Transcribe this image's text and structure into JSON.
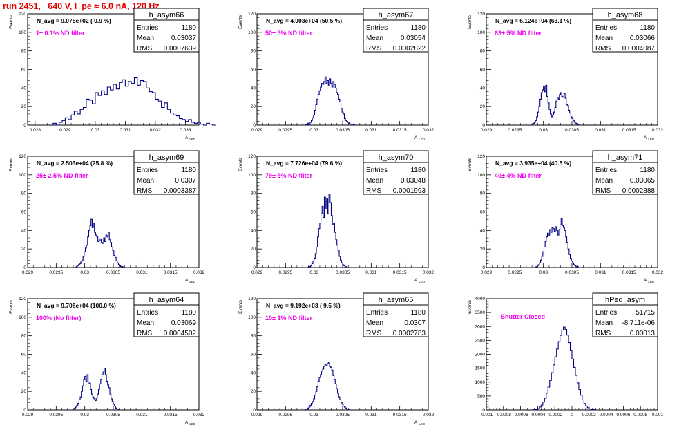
{
  "header": "run 2451,   640 V, I_pe ≈ 6.0 nA, 120 Hz",
  "colors": {
    "header": "#e00000",
    "annotation": "#ee00ee",
    "histogram": "#000080"
  },
  "chart_data": [
    {
      "type": "bar",
      "name": "h_asym66",
      "navg": "N_avg = 9.075e+02 ( 0.9 %)",
      "label": "1± 0.1% ND filter",
      "stats": {
        "entries": "1180",
        "mean": "0.03037",
        "rms": "0.0007639"
      },
      "ylabel": "Events",
      "xlabel": "A",
      "xlabel_sub": "LED",
      "xlim": [
        0.02775,
        0.03345
      ],
      "ylim": [
        0,
        120
      ],
      "yticks": [
        0,
        20,
        40,
        60,
        80,
        100,
        120
      ],
      "xticks": [
        "0.028",
        "0.029",
        "0.03",
        "0.031",
        "0.032",
        "0.033"
      ],
      "xtick_values": [
        0.028,
        0.029,
        0.03,
        0.031,
        0.032,
        0.033
      ],
      "bins": {
        "x0": 0.0286,
        "dx": 0.0001,
        "values": [
          2,
          0,
          3,
          5,
          8,
          6,
          11,
          15,
          12,
          17,
          19,
          28,
          27,
          23,
          35,
          32,
          37,
          33,
          41,
          38,
          44,
          39,
          46,
          49,
          42,
          47,
          45,
          51,
          43,
          48,
          47,
          40,
          36,
          35,
          28,
          26,
          19,
          24,
          17,
          13,
          11,
          10,
          7,
          6,
          4,
          6,
          3,
          2,
          3,
          1,
          0,
          2,
          1,
          0
        ]
      }
    },
    {
      "type": "bar",
      "name": "h_asym67",
      "navg": "N_avg = 4.903e+04 (50.5 %)",
      "label": "50± 5% ND filter",
      "stats": {
        "entries": "1180",
        "mean": "0.03054",
        "rms": "0.0002822"
      },
      "ylabel": "Events",
      "xlabel": "A",
      "xlabel_sub": "LED",
      "xlim": [
        0.029,
        0.032
      ],
      "ylim": [
        0,
        120
      ],
      "yticks": [
        0,
        20,
        40,
        60,
        80,
        100,
        120
      ],
      "xticks": [
        "0.029",
        "0.0295",
        "0.03",
        "0.0305",
        "0.031",
        "0.0315",
        "0.032"
      ],
      "xtick_values": [
        0.029,
        0.0295,
        0.03,
        0.0305,
        0.031,
        0.0315,
        0.032
      ],
      "bins": {
        "x0": 0.02985,
        "dx": 2e-05,
        "values": [
          1,
          0,
          2,
          0,
          3,
          5,
          8,
          11,
          16,
          22,
          28,
          33,
          37,
          41,
          45,
          44,
          47,
          52,
          45,
          48,
          43,
          50,
          45,
          41,
          47,
          44,
          40,
          35,
          33,
          28,
          25,
          18,
          14,
          12,
          7,
          5,
          4,
          3,
          2,
          1,
          1,
          0,
          1
        ]
      }
    },
    {
      "type": "bar",
      "name": "h_asym68",
      "navg": "N_avg = 6.124e+04 (63.1 %)",
      "label": "63± 5% ND filter",
      "stats": {
        "entries": "1180",
        "mean": "0.03066",
        "rms": "0.0004087"
      },
      "ylabel": "Events",
      "xlabel": "A",
      "xlabel_sub": "LED",
      "xlim": [
        0.029,
        0.032
      ],
      "ylim": [
        0,
        120
      ],
      "yticks": [
        0,
        20,
        40,
        60,
        80,
        100,
        120
      ],
      "xticks": [
        "0.029",
        "0.0295",
        "0.03",
        "0.0305",
        "0.031",
        "0.0315",
        "0.032"
      ],
      "xtick_values": [
        0.029,
        0.0295,
        0.03,
        0.0305,
        0.031,
        0.0315,
        0.032
      ],
      "bins": {
        "x0": 0.0298,
        "dx": 2e-05,
        "values": [
          1,
          2,
          3,
          5,
          9,
          14,
          20,
          28,
          35,
          38,
          42,
          36,
          43,
          31,
          24,
          17,
          12,
          9,
          11,
          14,
          19,
          26,
          30,
          28,
          33,
          35,
          31,
          30,
          34,
          29,
          22,
          21,
          16,
          13,
          9,
          7,
          5,
          3,
          2,
          1,
          1,
          0
        ]
      }
    },
    {
      "type": "bar",
      "name": "h_asym69",
      "navg": "N_avg = 2.503e+04 (25.8 %)",
      "label": "25± 2.5% ND filter",
      "stats": {
        "entries": "1180",
        "mean": "0.0307",
        "rms": "0.0003387"
      },
      "ylabel": "Events",
      "xlabel": "A",
      "xlabel_sub": "LED",
      "xlim": [
        0.029,
        0.032
      ],
      "ylim": [
        0,
        120
      ],
      "yticks": [
        0,
        20,
        40,
        60,
        80,
        100,
        120
      ],
      "xticks": [
        "0.029",
        "0.0295",
        "0.03",
        "0.0305",
        "0.031",
        "0.0315",
        "0.032"
      ],
      "xtick_values": [
        0.029,
        0.0295,
        0.03,
        0.0305,
        0.031,
        0.0315,
        0.032
      ],
      "bins": {
        "x0": 0.02985,
        "dx": 2e-05,
        "values": [
          1,
          2,
          3,
          4,
          6,
          8,
          12,
          17,
          21,
          24,
          33,
          40,
          45,
          52,
          43,
          48,
          38,
          35,
          33,
          28,
          29,
          31,
          27,
          26,
          32,
          28,
          35,
          33,
          38,
          30,
          27,
          22,
          18,
          13,
          11,
          7,
          5,
          3,
          2,
          1,
          1
        ]
      }
    },
    {
      "type": "bar",
      "name": "h_asym70",
      "navg": "N_avg = 7.726e+04 (79.6 %)",
      "label": "79± 5% ND filter",
      "stats": {
        "entries": "1180",
        "mean": "0.03048",
        "rms": "0.0001993"
      },
      "ylabel": "Events",
      "xlabel": "A",
      "xlabel_sub": "LED",
      "xlim": [
        0.029,
        0.032
      ],
      "ylim": [
        0,
        120
      ],
      "yticks": [
        0,
        20,
        40,
        60,
        80,
        100,
        120
      ],
      "xticks": [
        "0.029",
        "0.0295",
        "0.03",
        "0.0305",
        "0.031",
        "0.0315",
        "0.032"
      ],
      "xtick_values": [
        0.029,
        0.0295,
        0.03,
        0.0305,
        0.031,
        0.0315,
        0.032
      ],
      "bins": {
        "x0": 0.0299,
        "dx": 2e-05,
        "values": [
          1,
          1,
          2,
          4,
          7,
          10,
          15,
          22,
          33,
          42,
          48,
          58,
          66,
          54,
          76,
          63,
          74,
          58,
          79,
          70,
          56,
          46,
          48,
          38,
          30,
          24,
          18,
          12,
          8,
          5,
          3,
          2,
          1,
          1,
          0
        ]
      }
    },
    {
      "type": "bar",
      "name": "h_asym71",
      "navg": "N_avg = 3.935e+04 (40.5 %)",
      "label": "40± 4% ND filter",
      "stats": {
        "entries": "1180",
        "mean": "0.03065",
        "rms": "0.0002888"
      },
      "ylabel": "Events",
      "xlabel": "A",
      "xlabel_sub": "LED",
      "xlim": [
        0.029,
        0.032
      ],
      "ylim": [
        0,
        120
      ],
      "yticks": [
        0,
        20,
        40,
        60,
        80,
        100,
        120
      ],
      "xticks": [
        "0.029",
        "0.0295",
        "0.03",
        "0.0305",
        "0.031",
        "0.0315",
        "0.032"
      ],
      "xtick_values": [
        0.029,
        0.0295,
        0.03,
        0.0305,
        0.031,
        0.0315,
        0.032
      ],
      "bins": {
        "x0": 0.02985,
        "dx": 2e-05,
        "values": [
          0,
          1,
          2,
          3,
          5,
          8,
          12,
          17,
          22,
          28,
          33,
          37,
          34,
          41,
          38,
          43,
          42,
          39,
          44,
          40,
          35,
          41,
          46,
          53,
          45,
          43,
          40,
          33,
          27,
          20,
          14,
          10,
          7,
          5,
          3,
          2,
          1,
          1,
          0
        ]
      }
    },
    {
      "type": "bar",
      "name": "h_asym64",
      "navg": "N_avg = 9.708e+04 (100.0 %)",
      "label": "100% (No filter)",
      "stats": {
        "entries": "1180",
        "mean": "0.03069",
        "rms": "0.0004502"
      },
      "ylabel": "Events",
      "xlabel": "A",
      "xlabel_sub": "LED",
      "xlim": [
        0.029,
        0.032
      ],
      "ylim": [
        0,
        120
      ],
      "yticks": [
        0,
        20,
        40,
        60,
        80,
        100,
        120
      ],
      "xticks": [
        "0.029",
        "0.0295",
        "0.03",
        "0.0305",
        "0.031",
        "0.0315",
        "0.032"
      ],
      "xtick_values": [
        0.029,
        0.0295,
        0.03,
        0.0305,
        0.031,
        0.0315,
        0.032
      ],
      "bins": {
        "x0": 0.0298,
        "dx": 2e-05,
        "values": [
          1,
          2,
          3,
          5,
          7,
          11,
          14,
          20,
          26,
          33,
          36,
          31,
          38,
          28,
          29,
          22,
          17,
          14,
          12,
          10,
          13,
          17,
          22,
          28,
          33,
          38,
          41,
          45,
          38,
          31,
          27,
          24,
          17,
          12,
          9,
          6,
          4,
          2,
          1,
          1
        ]
      }
    },
    {
      "type": "bar",
      "name": "h_asym65",
      "navg": "N_avg = 9.192e+03 ( 9.5 %)",
      "label": "10± 1% ND filter",
      "stats": {
        "entries": "1180",
        "mean": "0.0307",
        "rms": "0.0002783"
      },
      "ylabel": "Events",
      "xlabel": "A",
      "xlabel_sub": "LED",
      "xlim": [
        0.029,
        0.032
      ],
      "ylim": [
        0,
        120
      ],
      "yticks": [
        0,
        20,
        40,
        60,
        80,
        100,
        120
      ],
      "xticks": [
        "0.029",
        "0.0295",
        "0.03",
        "0.0305",
        "0.031",
        "0.0315",
        "0.032"
      ],
      "xtick_values": [
        0.029,
        0.0295,
        0.03,
        0.0305,
        0.031,
        0.0315,
        0.032
      ],
      "bins": {
        "x0": 0.02985,
        "dx": 2e-05,
        "values": [
          1,
          1,
          2,
          3,
          5,
          7,
          9,
          12,
          16,
          20,
          25,
          31,
          35,
          38,
          42,
          44,
          47,
          49,
          48,
          50,
          51,
          47,
          46,
          43,
          37,
          33,
          28,
          23,
          18,
          14,
          11,
          8,
          6,
          4,
          3,
          2,
          1,
          1,
          0
        ]
      }
    },
    {
      "type": "bar",
      "name": "hPed_asym",
      "navg": "",
      "label": "Shutter Closed",
      "stats": {
        "entries": "51715",
        "mean": "-8.711e-06",
        "rms": "0.00013"
      },
      "ylabel": "Events",
      "xlabel": "",
      "xlabel_sub": "",
      "xlim": [
        -0.001,
        0.001
      ],
      "ylim": [
        0,
        4000
      ],
      "yticks": [
        0,
        500,
        1000,
        1500,
        2000,
        2500,
        3000,
        3500,
        4000
      ],
      "xticks": [
        "-0.001",
        "-0.0008",
        "-0.0006",
        "-0.0004",
        "-0.0002",
        "0",
        "0.0002",
        "0.0004",
        "0.0006",
        "0.0008",
        "0.001"
      ],
      "xtick_values": [
        -0.001,
        -0.0008,
        -0.0006,
        -0.0004,
        -0.0002,
        0,
        0.0002,
        0.0004,
        0.0006,
        0.0008,
        0.001
      ],
      "bins": {
        "x0": -0.00046,
        "dx": 2e-05,
        "values": [
          5,
          10,
          25,
          50,
          100,
          170,
          280,
          420,
          600,
          820,
          1060,
          1340,
          1620,
          1910,
          2190,
          2460,
          2680,
          2870,
          2980,
          2890,
          2690,
          2420,
          2130,
          1830,
          1530,
          1240,
          970,
          730,
          530,
          360,
          230,
          140,
          80,
          40,
          20,
          10,
          5
        ]
      }
    }
  ]
}
